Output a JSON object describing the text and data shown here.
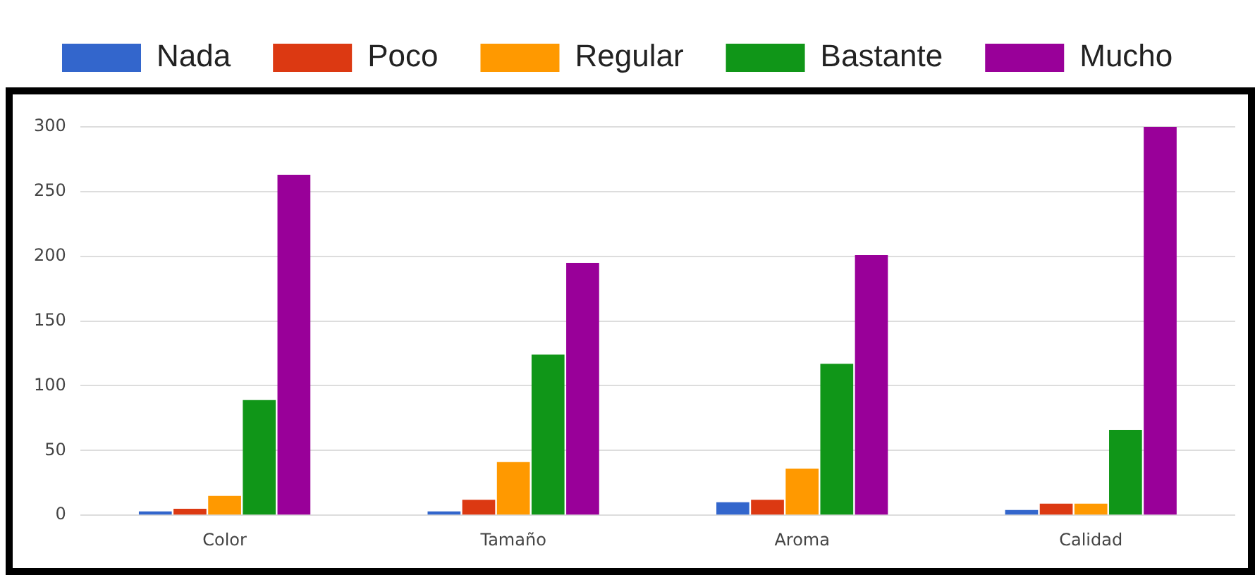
{
  "chart_data": {
    "type": "bar",
    "categories": [
      "Color",
      "Tamaño",
      "Aroma",
      "Calidad"
    ],
    "series": [
      {
        "name": "Nada",
        "color": "#3366cc",
        "values": [
          3,
          3,
          10,
          4
        ]
      },
      {
        "name": "Poco",
        "color": "#dc3912",
        "values": [
          5,
          12,
          12,
          9
        ]
      },
      {
        "name": "Regular",
        "color": "#ff9900",
        "values": [
          15,
          41,
          36,
          9
        ]
      },
      {
        "name": "Bastante",
        "color": "#109618",
        "values": [
          89,
          124,
          117,
          66
        ]
      },
      {
        "name": "Mucho",
        "color": "#990099",
        "values": [
          263,
          195,
          201,
          300
        ]
      }
    ],
    "ylim": [
      0,
      300
    ],
    "yticks": [
      0,
      50,
      100,
      150,
      200,
      250,
      300
    ],
    "grid": "y",
    "legend": "top left"
  }
}
